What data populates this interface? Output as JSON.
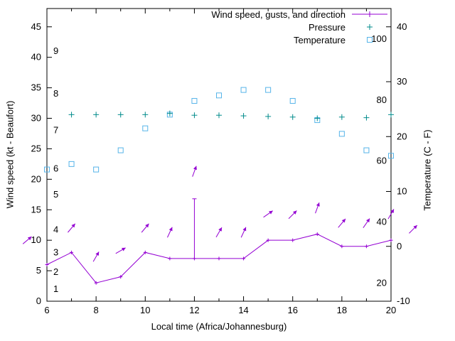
{
  "legend": [
    {
      "label": "Wind speed, gusts, and direction",
      "color": "#9400d3",
      "marker": "line-with-point"
    },
    {
      "label": "Pressure",
      "color": "#008b8b",
      "marker": "plus"
    },
    {
      "label": "Temperature",
      "color": "#56b4e9",
      "marker": "open-square"
    }
  ],
  "axes": {
    "x": {
      "label": "Local time (Africa/Johannesburg)"
    },
    "y_left": {
      "label": "Wind speed (kt - Beaufort)"
    },
    "y_right": {
      "label": "Temperature (C - F)"
    }
  },
  "chart_data": {
    "type": "line",
    "title": "",
    "x_axis": {
      "label": "Local time (Africa/Johannesburg)",
      "min": 6,
      "max": 20,
      "ticks": [
        6,
        8,
        10,
        12,
        14,
        16,
        18,
        20
      ],
      "minor_tick_every_hour": true
    },
    "y_left_axis": {
      "label": "Wind speed (kt - Beaufort)",
      "min": 0,
      "max": 48,
      "ticks": [
        0,
        5,
        10,
        15,
        20,
        25,
        30,
        35,
        40,
        45
      ],
      "beaufort_labels": [
        {
          "text": "1",
          "kt": 2
        },
        {
          "text": "2",
          "kt": 4.8
        },
        {
          "text": "3",
          "kt": 8
        },
        {
          "text": "4",
          "kt": 11.7
        },
        {
          "text": "5",
          "kt": 17.5
        },
        {
          "text": "6",
          "kt": 21.7
        },
        {
          "text": "7",
          "kt": 28
        },
        {
          "text": "8",
          "kt": 34
        },
        {
          "text": "9",
          "kt": 41
        }
      ]
    },
    "y_right_axis": {
      "label": "Temperature (C - F)",
      "min": -10,
      "max": 43.3,
      "ticks": [
        -10,
        0,
        10,
        20,
        30,
        40
      ],
      "fahrenheit_labels": [
        "20",
        "40",
        "60",
        "80",
        "100"
      ]
    },
    "series": [
      {
        "name": "Wind speed, gusts, and direction",
        "type": "line",
        "axis": "left",
        "unit": "kt",
        "color": "#9400d3",
        "hours": [
          6,
          7,
          8,
          9,
          10,
          11,
          12,
          13,
          14,
          15,
          16,
          17,
          18,
          19,
          20
        ],
        "wind_kt": [
          6,
          8,
          3,
          4,
          8,
          7,
          7,
          7,
          7,
          10,
          10,
          11,
          9,
          9,
          10
        ],
        "gust_bars": [
          {
            "hour": 12,
            "from_kt": 7,
            "to_kt": 16.8
          }
        ],
        "direction_arrows": [
          {
            "hour": 5.2,
            "kt": 10,
            "angle_deg": 40
          },
          {
            "hour": 7,
            "kt": 12,
            "angle_deg": 50
          },
          {
            "hour": 8,
            "kt": 7.3,
            "angle_deg": 60
          },
          {
            "hour": 9,
            "kt": 8.3,
            "angle_deg": 30
          },
          {
            "hour": 10,
            "kt": 12,
            "angle_deg": 50
          },
          {
            "hour": 11,
            "kt": 11.3,
            "angle_deg": 65
          },
          {
            "hour": 12,
            "kt": 21.3,
            "angle_deg": 70
          },
          {
            "hour": 13,
            "kt": 11.3,
            "angle_deg": 60
          },
          {
            "hour": 14,
            "kt": 11.3,
            "angle_deg": 65
          },
          {
            "hour": 15,
            "kt": 14.3,
            "angle_deg": 35
          },
          {
            "hour": 16,
            "kt": 14.2,
            "angle_deg": 45
          },
          {
            "hour": 17,
            "kt": 15.3,
            "angle_deg": 70
          },
          {
            "hour": 18,
            "kt": 12.8,
            "angle_deg": 50
          },
          {
            "hour": 19,
            "kt": 12.8,
            "angle_deg": 55
          },
          {
            "hour": 20,
            "kt": 14.3,
            "angle_deg": 60
          },
          {
            "hour": 20.9,
            "kt": 11.8,
            "angle_deg": 45
          }
        ]
      },
      {
        "name": "Pressure",
        "type": "scatter",
        "marker": "plus",
        "axis": "left",
        "unit": "inHg",
        "color": "#008b8b",
        "hours": [
          7,
          8,
          9,
          10,
          11,
          12,
          13,
          14,
          15,
          16,
          17,
          18,
          19,
          20
        ],
        "values": [
          30.6,
          30.6,
          30.6,
          30.6,
          30.8,
          30.5,
          30.5,
          30.4,
          30.3,
          30.2,
          30.0,
          30.2,
          30.1,
          30.6
        ]
      },
      {
        "name": "Temperature",
        "type": "scatter",
        "marker": "open-square",
        "axis": "right",
        "unit": "C",
        "color": "#56b4e9",
        "hours": [
          6,
          7,
          8,
          9,
          10,
          11,
          12,
          13,
          14,
          15,
          16,
          17,
          18,
          19,
          20
        ],
        "values_c": [
          14,
          15,
          14,
          17.5,
          21.5,
          24,
          26.5,
          27.5,
          28.5,
          28.5,
          26.5,
          23,
          20.5,
          17.5,
          16.5
        ]
      }
    ]
  }
}
